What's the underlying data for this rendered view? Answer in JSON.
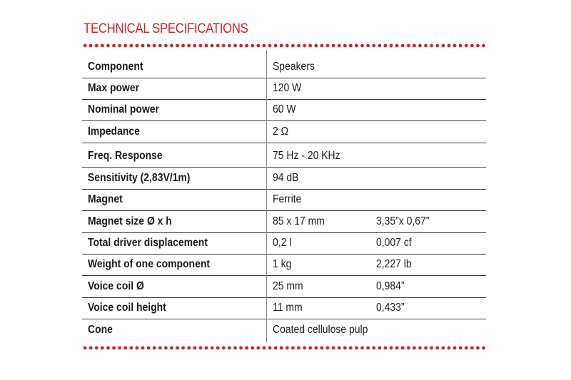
{
  "title": "TECHNICAL SPECIFICATIONS",
  "accent_color": "#d0202a",
  "specs": [
    {
      "label": "Component",
      "value": "Speakers",
      "imperial": ""
    },
    {
      "label": "Max power",
      "value": "120 W",
      "imperial": ""
    },
    {
      "label": "Nominal power",
      "value": "60 W",
      "imperial": ""
    },
    {
      "label": "Impedance",
      "value": "2 Ω",
      "imperial": ""
    },
    {
      "label": "Freq. Response",
      "value": "75 Hz - 20 KHz",
      "imperial": ""
    },
    {
      "label": "Sensitivity (2,83V/1m)",
      "value": "94 dB",
      "imperial": ""
    },
    {
      "label": "Magnet",
      "value": "Ferrite",
      "imperial": ""
    },
    {
      "label": "Magnet size Ø x h",
      "value": "85 x 17 mm",
      "imperial": "3,35”x 0,67”"
    },
    {
      "label": "Total driver displacement",
      "value": "0,2 l",
      "imperial": "0,007 cf"
    },
    {
      "label": "Weight of one component",
      "value": "1 kg",
      "imperial": "2,227 lb"
    },
    {
      "label": "Voice coil Ø",
      "value": "25 mm",
      "imperial": "0,984”"
    },
    {
      "label": "Voice coil height",
      "value": "11 mm",
      "imperial": "0,433”"
    },
    {
      "label": "Cone",
      "value": "Coated cellulose pulp",
      "imperial": ""
    }
  ]
}
